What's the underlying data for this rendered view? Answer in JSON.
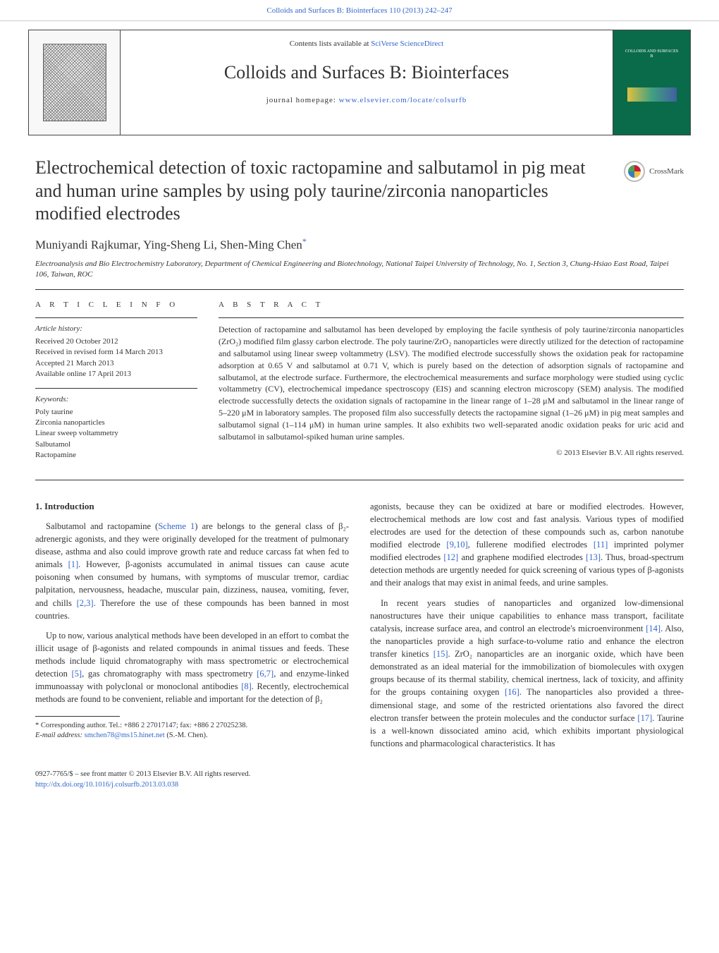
{
  "top_link": "Colloids and Surfaces B: Biointerfaces 110 (2013) 242–247",
  "masthead": {
    "contents_prefix": "Contents lists available at ",
    "contents_link": "SciVerse ScienceDirect",
    "journal_name": "Colloids and Surfaces B: Biointerfaces",
    "homepage_prefix": "journal homepage: ",
    "homepage_link": "www.elsevier.com/locate/colsurfb",
    "cover_text": "COLLOIDS AND SURFACES B"
  },
  "article": {
    "title": "Electrochemical detection of toxic ractopamine and salbutamol in pig meat and human urine samples by using poly taurine/zirconia nanoparticles modified electrodes",
    "crossmark": "CrossMark",
    "authors": "Muniyandi Rajkumar, Ying-Sheng Li, Shen-Ming Chen",
    "corr_mark": "*",
    "affiliation": "Electroanalysis and Bio Electrochemistry Laboratory, Department of Chemical Engineering and Biotechnology, National Taipei University of Technology, No. 1, Section 3, Chung-Hsiao East Road, Taipei 106, Taiwan, ROC"
  },
  "info": {
    "heading": "a r t i c l e   i n f o",
    "history_head": "Article history:",
    "history": [
      "Received 20 October 2012",
      "Received in revised form 14 March 2013",
      "Accepted 21 March 2013",
      "Available online 17 April 2013"
    ],
    "keywords_head": "Keywords:",
    "keywords": [
      "Poly taurine",
      "Zirconia nanoparticles",
      "Linear sweep voltammetry",
      "Salbutamol",
      "Ractopamine"
    ]
  },
  "abstract": {
    "heading": "a b s t r a c t",
    "text": "Detection of ractopamine and salbutamol has been developed by employing the facile synthesis of poly taurine/zirconia nanoparticles (ZrO₂) modified film glassy carbon electrode. The poly taurine/ZrO₂ nanoparticles were directly utilized for the detection of ractopamine and salbutamol using linear sweep voltammetry (LSV). The modified electrode successfully shows the oxidation peak for ractopamine adsorption at 0.65 V and salbutamol at 0.71 V, which is purely based on the detection of adsorption signals of ractopamine and salbutamol, at the electrode surface. Furthermore, the electrochemical measurements and surface morphology were studied using cyclic voltammetry (CV), electrochemical impedance spectroscopy (EIS) and scanning electron microscopy (SEM) analysis. The modified electrode successfully detects the oxidation signals of ractopamine in the linear range of 1–28 μM and salbutamol in the linear range of 5–220 μM in laboratory samples. The proposed film also successfully detects the ractopamine signal (1–26 μM) in pig meat samples and salbutamol signal (1–114 μM) in human urine samples. It also exhibits two well-separated anodic oxidation peaks for uric acid and salbutamol in salbutamol-spiked human urine samples.",
    "copyright": "© 2013 Elsevier B.V. All rights reserved."
  },
  "body": {
    "section_heading": "1.  Introduction",
    "left_paras": [
      "Salbutamol and ractopamine (Scheme 1) are belongs to the general class of β₂-adrenergic agonists, and they were originally developed for the treatment of pulmonary disease, asthma and also could improve growth rate and reduce carcass fat when fed to animals [1]. However, β-agonists accumulated in animal tissues can cause acute poisoning when consumed by humans, with symptoms of muscular tremor, cardiac palpitation, nervousness, headache, muscular pain, dizziness, nausea, vomiting, fever, and chills [2,3]. Therefore the use of these compounds has been banned in most countries.",
      "Up to now, various analytical methods have been developed in an effort to combat the illicit usage of β-agonists and related compounds in animal tissues and feeds. These methods include liquid chromatography with mass spectrometric or electrochemical detection [5], gas chromatography with mass spectrometry [6,7], and enzyme-linked immunoassay with polyclonal or monoclonal antibodies [8]. Recently, electrochemical methods are found to be convenient, reliable and important for the detection of β₂"
    ],
    "right_paras": [
      "agonists, because they can be oxidized at bare or modified electrodes. However, electrochemical methods are low cost and fast analysis. Various types of modified electrodes are used for the detection of these compounds such as, carbon nanotube modified electrode [9,10], fullerene modified electrodes [11] imprinted polymer modified electrodes [12] and graphene modified electrodes [13]. Thus, broad-spectrum detection methods are urgently needed for quick screening of various types of β-agonists and their analogs that may exist in animal feeds, and urine samples.",
      "In recent years studies of nanoparticles and organized low-dimensional nanostructures have their unique capabilities to enhance mass transport, facilitate catalysis, increase surface area, and control an electrode's microenvironment [14]. Also, the nanoparticles provide a high surface-to-volume ratio and enhance the electron transfer kinetics [15]. ZrO₂ nanoparticles are an inorganic oxide, which have been demonstrated as an ideal material for the immobilization of biomolecules with oxygen groups because of its thermal stability, chemical inertness, lack of toxicity, and affinity for the groups containing oxygen [16]. The nanoparticles also provided a three-dimensional stage, and some of the restricted orientations also favored the direct electron transfer between the protein molecules and the conductor surface [17]. Taurine is a well-known dissociated amino acid, which exhibits important physiological functions and pharmacological characteristics. It has"
    ]
  },
  "footnote": {
    "corr_text": "* Corresponding author. Tel.: +886 2 27017147; fax: +886 2 27025238.",
    "email_label": "E-mail address: ",
    "email": "smchen78@ms15.hinet.net",
    "email_suffix": " (S.-M. Chen)."
  },
  "bottom": {
    "issn": "0927-7765/$ – see front matter © 2013 Elsevier B.V. All rights reserved.",
    "doi": "http://dx.doi.org/10.1016/j.colsurfb.2013.03.038"
  },
  "refs": {
    "scheme1": "Scheme 1",
    "r1": "[1]",
    "r2_3": "[2,3]",
    "r5": "[5]",
    "r6_7": "[6,7]",
    "r8": "[8]",
    "r9_10": "[9,10]",
    "r11": "[11]",
    "r12": "[12]",
    "r13": "[13]",
    "r14": "[14]",
    "r15": "[15]",
    "r16": "[16]",
    "r17": "[17]"
  }
}
